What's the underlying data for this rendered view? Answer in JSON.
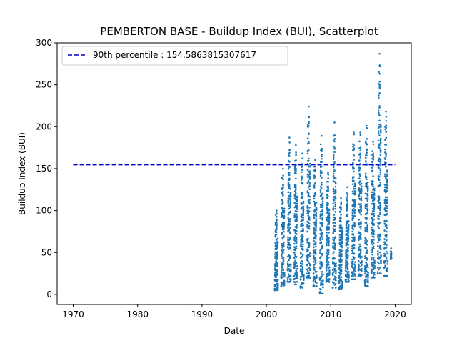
{
  "chart_data": {
    "type": "scatter",
    "title": "PEMBERTON BASE - Buildup Index (BUI), Scatterplot",
    "xlabel": "Date",
    "ylabel": "Buildup Index (BUI)",
    "xlim": [
      1967.5,
      2022.5
    ],
    "ylim": [
      -12,
      300
    ],
    "xticks": [
      1970,
      1980,
      1990,
      2000,
      2010,
      2020
    ],
    "yticks": [
      0,
      50,
      100,
      150,
      200,
      250,
      300
    ],
    "grid": false,
    "legend_position": "upper-left",
    "point_color": "#1f77b4",
    "reference_line": {
      "label": "90th percentile : 154.5863815307617",
      "value": 154.5863815307617,
      "x_range": [
        1970,
        2020
      ],
      "color": "#0000cc",
      "style": "dashed"
    },
    "seasons": [
      {
        "year": 2001,
        "min": 5,
        "max": 100
      },
      {
        "year": 2002,
        "min": 10,
        "max": 150
      },
      {
        "year": 2003,
        "min": 15,
        "max": 187
      },
      {
        "year": 2004,
        "min": 12,
        "max": 178
      },
      {
        "year": 2005,
        "min": 8,
        "max": 168
      },
      {
        "year": 2006,
        "min": 20,
        "max": 224
      },
      {
        "year": 2007,
        "min": 10,
        "max": 160
      },
      {
        "year": 2008,
        "min": 1,
        "max": 189
      },
      {
        "year": 2009,
        "min": 15,
        "max": 145
      },
      {
        "year": 2010,
        "min": 8,
        "max": 205
      },
      {
        "year": 2011,
        "min": 6,
        "max": 115
      },
      {
        "year": 2012,
        "min": 15,
        "max": 128
      },
      {
        "year": 2013,
        "min": 18,
        "max": 193
      },
      {
        "year": 2014,
        "min": 22,
        "max": 193
      },
      {
        "year": 2015,
        "min": 10,
        "max": 201
      },
      {
        "year": 2016,
        "min": 20,
        "max": 182
      },
      {
        "year": 2017,
        "min": 25,
        "max": 287
      },
      {
        "year": 2018,
        "min": 22,
        "max": 218
      },
      {
        "year": 2019,
        "min": 42,
        "max": 55
      }
    ]
  }
}
